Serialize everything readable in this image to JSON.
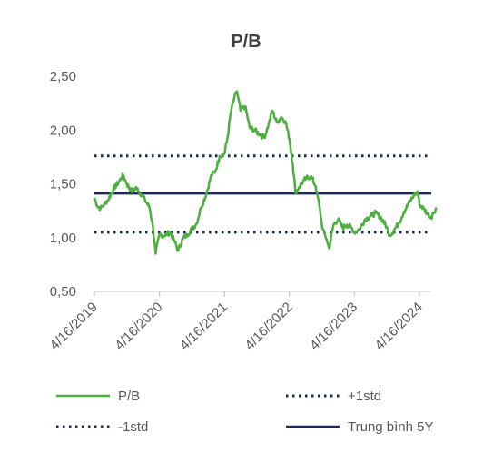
{
  "chart_data": {
    "type": "line",
    "title": "P/B",
    "xlabel": "",
    "ylabel": "",
    "ylim": [
      0.5,
      2.5
    ],
    "y_ticks": [
      "0,50",
      "1,00",
      "1,50",
      "2,00",
      "2,50"
    ],
    "y_tick_values": [
      0.5,
      1.0,
      1.5,
      2.0,
      2.5
    ],
    "x_ticks": [
      "4/16/2019",
      "4/16/2020",
      "4/16/2021",
      "4/16/2022",
      "4/16/2023",
      "4/16/2024"
    ],
    "x_range": [
      "2019-04-16",
      "2024-07-20"
    ],
    "grid": false,
    "legend_position": "bottom",
    "series": [
      {
        "name": "P/B",
        "color": "#4caf3f",
        "style": "solid",
        "points": [
          [
            "2019-04-16",
            1.37
          ],
          [
            "2019-05-01",
            1.3
          ],
          [
            "2019-05-20",
            1.27
          ],
          [
            "2019-06-10",
            1.31
          ],
          [
            "2019-07-01",
            1.35
          ],
          [
            "2019-08-01",
            1.45
          ],
          [
            "2019-09-01",
            1.52
          ],
          [
            "2019-09-25",
            1.58
          ],
          [
            "2019-10-15",
            1.5
          ],
          [
            "2019-11-10",
            1.43
          ],
          [
            "2019-12-10",
            1.46
          ],
          [
            "2020-01-05",
            1.4
          ],
          [
            "2020-01-25",
            1.35
          ],
          [
            "2020-02-20",
            1.28
          ],
          [
            "2020-03-10",
            1.1
          ],
          [
            "2020-03-25",
            0.85
          ],
          [
            "2020-04-16",
            1.03
          ],
          [
            "2020-05-15",
            1.02
          ],
          [
            "2020-06-15",
            1.05
          ],
          [
            "2020-07-10",
            0.96
          ],
          [
            "2020-07-30",
            0.88
          ],
          [
            "2020-08-25",
            0.99
          ],
          [
            "2020-09-20",
            1.03
          ],
          [
            "2020-10-15",
            1.08
          ],
          [
            "2020-11-10",
            1.13
          ],
          [
            "2020-12-05",
            1.28
          ],
          [
            "2021-01-05",
            1.41
          ],
          [
            "2021-02-01",
            1.58
          ],
          [
            "2021-02-25",
            1.62
          ],
          [
            "2021-03-20",
            1.76
          ],
          [
            "2021-04-16",
            1.78
          ],
          [
            "2021-05-05",
            1.95
          ],
          [
            "2021-05-20",
            2.15
          ],
          [
            "2021-06-10",
            2.3
          ],
          [
            "2021-06-25",
            2.36
          ],
          [
            "2021-07-15",
            2.18
          ],
          [
            "2021-08-10",
            2.22
          ],
          [
            "2021-09-05",
            2.02
          ],
          [
            "2021-10-01",
            2.0
          ],
          [
            "2021-11-01",
            1.96
          ],
          [
            "2021-11-25",
            1.93
          ],
          [
            "2021-12-20",
            2.05
          ],
          [
            "2022-01-10",
            2.18
          ],
          [
            "2022-02-05",
            2.07
          ],
          [
            "2022-03-01",
            2.12
          ],
          [
            "2022-03-25",
            2.08
          ],
          [
            "2022-04-16",
            1.92
          ],
          [
            "2022-05-05",
            1.68
          ],
          [
            "2022-05-20",
            1.42
          ],
          [
            "2022-06-10",
            1.47
          ],
          [
            "2022-07-01",
            1.52
          ],
          [
            "2022-07-20",
            1.55
          ],
          [
            "2022-08-15",
            1.57
          ],
          [
            "2022-09-10",
            1.48
          ],
          [
            "2022-10-01",
            1.3
          ],
          [
            "2022-10-20",
            1.08
          ],
          [
            "2022-11-10",
            0.99
          ],
          [
            "2022-11-25",
            0.9
          ],
          [
            "2022-12-20",
            1.12
          ],
          [
            "2023-01-15",
            1.17
          ],
          [
            "2023-02-10",
            1.09
          ],
          [
            "2023-03-05",
            1.12
          ],
          [
            "2023-04-01",
            1.09
          ],
          [
            "2023-04-16",
            1.05
          ],
          [
            "2023-05-15",
            1.08
          ],
          [
            "2023-06-15",
            1.17
          ],
          [
            "2023-07-15",
            1.2
          ],
          [
            "2023-08-15",
            1.23
          ],
          [
            "2023-09-15",
            1.18
          ],
          [
            "2023-10-15",
            1.1
          ],
          [
            "2023-11-01",
            1.02
          ],
          [
            "2023-11-25",
            1.07
          ],
          [
            "2023-12-20",
            1.13
          ],
          [
            "2024-01-20",
            1.24
          ],
          [
            "2024-02-20",
            1.33
          ],
          [
            "2024-03-15",
            1.39
          ],
          [
            "2024-04-05",
            1.43
          ],
          [
            "2024-04-16",
            1.31
          ],
          [
            "2024-05-10",
            1.27
          ],
          [
            "2024-06-01",
            1.22
          ],
          [
            "2024-06-20",
            1.19
          ],
          [
            "2024-07-05",
            1.23
          ],
          [
            "2024-07-20",
            1.28
          ]
        ]
      },
      {
        "name": "+1std",
        "color": "#1a2a5a",
        "style": "dotted",
        "value": 1.76
      },
      {
        "name": "-1std",
        "color": "#1a2a5a",
        "style": "dotted",
        "value": 1.05
      },
      {
        "name": "Trung bình 5Y",
        "color": "#1a2a5a",
        "style": "solid",
        "value": 1.41
      }
    ]
  }
}
